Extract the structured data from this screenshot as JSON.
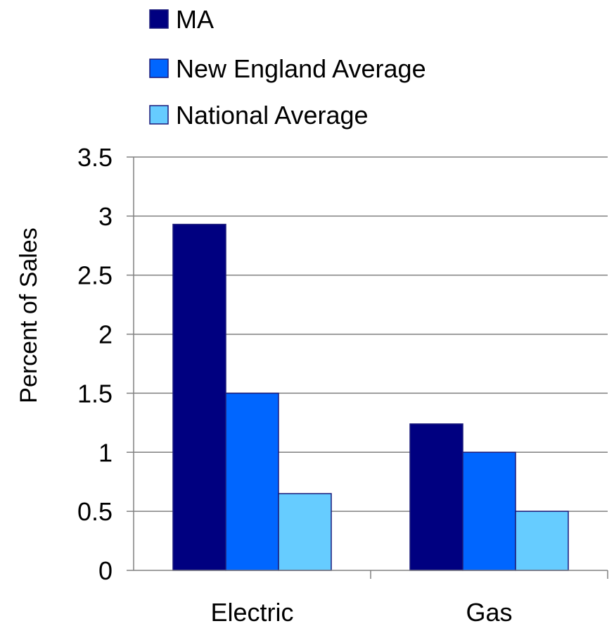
{
  "chart_data": {
    "type": "bar",
    "categories": [
      "Electric",
      "Gas"
    ],
    "series": [
      {
        "name": "MA",
        "values": [
          2.93,
          1.24
        ],
        "color": "#000080"
      },
      {
        "name": "New England Average",
        "values": [
          1.5,
          1.0
        ],
        "color": "#0066ff"
      },
      {
        "name": "National Average",
        "values": [
          0.65,
          0.5
        ],
        "color": "#66ccff"
      }
    ],
    "ylabel": "Percent of Sales",
    "xlabel": "",
    "ylim": [
      0,
      3.5
    ],
    "yticks": [
      "0",
      "0.5",
      "1",
      "1.5",
      "2",
      "2.5",
      "3",
      "3.5"
    ],
    "grid": true,
    "legend_position": "top"
  }
}
